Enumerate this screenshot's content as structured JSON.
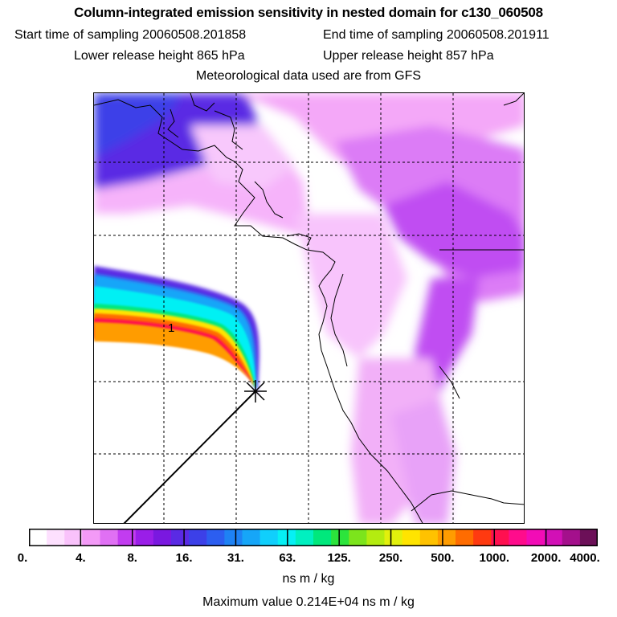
{
  "title": "Column-integrated emission sensitivity in nested domain for c130_060508",
  "start_label": "Start time of sampling 20060508.201858",
  "end_label": "End time of sampling 20060508.201911",
  "lower_label": "Lower release height  865 hPa",
  "upper_label": "Upper release height  857 hPa",
  "met_label": "Meteorological data used are from GFS",
  "colorbar": {
    "ticks": [
      "0.",
      "4.",
      "8.",
      "16.",
      "31.",
      "63.",
      "125.",
      "250.",
      "500.",
      "1000.",
      "2000.",
      "4000."
    ],
    "units": "ns m / kg",
    "colors": [
      "#ffffff",
      "#fde0fe",
      "#f9c2fb",
      "#f39af7",
      "#e070f4",
      "#c23cf0",
      "#9a1ee8",
      "#7a18e0",
      "#5a2ae4",
      "#3c40e8",
      "#2c5ef0",
      "#1e82f4",
      "#16a6f8",
      "#10cffc",
      "#06f0f4",
      "#00f0c0",
      "#00e87c",
      "#2ce43c",
      "#7ce41c",
      "#b4ec10",
      "#e2f00c",
      "#ffe400",
      "#ffc200",
      "#ff9c00",
      "#ff6c00",
      "#ff3a10",
      "#ff1050",
      "#ff0c8c",
      "#f20cb6",
      "#d210b6",
      "#a4108c",
      "#6c1058"
    ]
  },
  "max_label": "Maximum value  0.214E+04 ns m / kg",
  "map_marker": "release-point-x-icon",
  "plume_label": "1"
}
